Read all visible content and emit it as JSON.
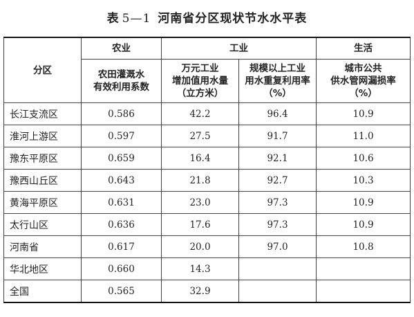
{
  "title": {
    "label": "表",
    "number": "5—1",
    "text": "河南省分区现状节水水平表"
  },
  "header": {
    "region": "分区",
    "groups": {
      "agriculture": "农业",
      "industry": "工业",
      "life": "生活"
    },
    "columns": [
      "农田灌溉水\n有效利用系数",
      "万元工业\n增加值用水量\n（立方米）",
      "规模以上工业\n用水重复利用率\n（%）",
      "城市公共\n供水管网漏损率\n（%）"
    ]
  },
  "rows": [
    {
      "region": "长江支流区",
      "values": [
        "0.586",
        "42.2",
        "96.4",
        "10.9"
      ]
    },
    {
      "region": "淮河上游区",
      "values": [
        "0.597",
        "27.5",
        "91.7",
        "11.0"
      ]
    },
    {
      "region": "豫东平原区",
      "values": [
        "0.659",
        "16.4",
        "92.1",
        "10.6"
      ]
    },
    {
      "region": "豫西山丘区",
      "values": [
        "0.643",
        "21.8",
        "92.7",
        "10.3"
      ]
    },
    {
      "region": "黄海平原区",
      "values": [
        "0.631",
        "23.0",
        "97.3",
        "10.9"
      ]
    },
    {
      "region": "太行山区",
      "values": [
        "0.636",
        "17.6",
        "97.3",
        "10.9"
      ]
    },
    {
      "region": "河南省",
      "values": [
        "0.617",
        "20.0",
        "97.0",
        "10.8"
      ]
    },
    {
      "region": "华北地区",
      "values": [
        "0.660",
        "14.3",
        "",
        ""
      ]
    },
    {
      "region": "全国",
      "values": [
        "0.565",
        "32.9",
        "",
        ""
      ]
    }
  ]
}
